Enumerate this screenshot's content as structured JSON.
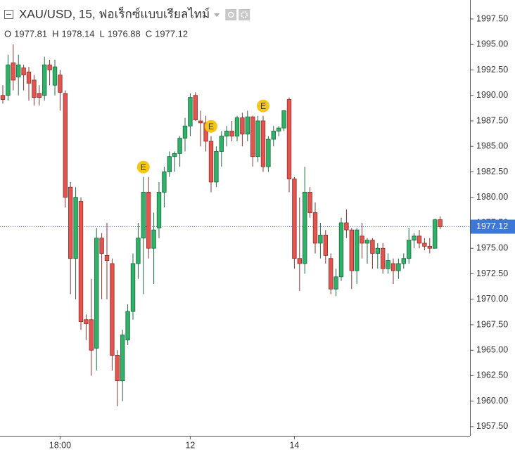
{
  "chart_data": {
    "type": "candlestick",
    "title": "XAU/USD, 15, ฟอเร็กซ์แบบเรียลไทม์",
    "ohlc_header": [
      {
        "label": "O",
        "value": 1977.81
      },
      {
        "label": "H",
        "value": 1978.14
      },
      {
        "label": "L",
        "value": 1976.88
      },
      {
        "label": "C",
        "value": 1977.12
      }
    ],
    "categories": [
      null,
      null,
      null,
      null,
      null,
      null,
      null,
      null,
      null,
      null,
      null,
      "18:00",
      null,
      null,
      null,
      null,
      null,
      null,
      null,
      null,
      null,
      null,
      null,
      null,
      null,
      null,
      null,
      null,
      null,
      null,
      null,
      null,
      null,
      null,
      null,
      null,
      "12",
      null,
      null,
      null,
      null,
      null,
      null,
      null,
      null,
      null,
      null,
      null,
      null,
      null,
      null,
      null,
      null,
      null,
      null,
      null,
      "14",
      null,
      null,
      null,
      null,
      null,
      null,
      null,
      null,
      null,
      null,
      null,
      null,
      null,
      null,
      null,
      null,
      null,
      null,
      null,
      null,
      null,
      null,
      null,
      null,
      null,
      null,
      null,
      null
    ],
    "open": [
      1990.0,
      1990.0,
      1993.2,
      1991.8,
      1992.7,
      1992.3,
      1991.5,
      1990.2,
      1990.0,
      1993.0,
      1991.0,
      1992.0,
      1990.2,
      1981.0,
      1974.0,
      1979.6,
      1968.0,
      1968.0,
      1965.2,
      1976.0,
      1974.3,
      1973.5,
      1964.5,
      1962.0,
      1966.0,
      1968.8,
      1973.5,
      1976.0,
      1980.5,
      1975.0,
      1977.0,
      1980.5,
      1982.5,
      1984.0,
      1984.3,
      1985.8,
      1987.0,
      1990.0,
      1987.5,
      1987.3,
      1985.5,
      1981.5,
      1984.5,
      1986.0,
      1986.5,
      1986.0,
      1987.8,
      1986.2,
      1987.9,
      1984.0,
      1987.5,
      1983.0,
      1985.7,
      1986.5,
      1986.8,
      1989.6,
      1981.8,
      1974.0,
      1973.5,
      1980.5,
      1978.5,
      1975.5,
      1976.3,
      1974.0,
      1971.0,
      1972.2,
      1977.5,
      1976.8,
      1972.8,
      1976.2,
      1975.5,
      1975.8,
      1974.5,
      1975.0,
      1973.0,
      1973.5,
      1972.8,
      1973.5,
      1974.0,
      1975.8,
      1976.2,
      1975.5,
      1975.2,
      1975.0,
      1977.81
    ],
    "high": [
      1991.0,
      1994.0,
      1995.0,
      1994.0,
      1993.0,
      1992.8,
      1992.0,
      1991.0,
      1993.8,
      1993.5,
      1993.5,
      1992.5,
      1990.5,
      1981.5,
      1981.0,
      1980.0,
      1968.5,
      1972.0,
      1977.0,
      1976.5,
      1977.5,
      1974.0,
      1965.0,
      1967.0,
      1969.5,
      1974.5,
      1977.5,
      1982.0,
      1982.0,
      1978.5,
      1981.5,
      1983.0,
      1984.5,
      1984.5,
      1986.0,
      1987.8,
      1990.2,
      1990.3,
      1988.5,
      1988.0,
      1986.0,
      1985.0,
      1986.5,
      1987.0,
      1987.5,
      1988.0,
      1988.3,
      1988.5,
      1988.0,
      1988.0,
      1988.0,
      1986.0,
      1987.0,
      1987.0,
      1988.5,
      1989.8,
      1982.0,
      1980.0,
      1983.0,
      1981.0,
      1979.5,
      1977.5,
      1976.8,
      1974.5,
      1973.0,
      1978.0,
      1978.8,
      1977.0,
      1977.0,
      1977.5,
      1976.0,
      1976.0,
      1975.5,
      1975.5,
      1974.5,
      1974.0,
      1974.0,
      1974.5,
      1977.0,
      1976.5,
      1976.8,
      1976.0,
      1976.0,
      1977.9,
      1978.14
    ],
    "low": [
      1989.2,
      1989.5,
      1990.5,
      1990.0,
      1990.5,
      1989.5,
      1989.0,
      1989.0,
      1989.5,
      1991.0,
      1990.0,
      1988.5,
      1979.0,
      1970.5,
      1970.0,
      1967.0,
      1966.0,
      1962.5,
      1963.0,
      1970.0,
      1970.0,
      1963.0,
      1959.5,
      1960.0,
      1965.5,
      1968.0,
      1972.0,
      1970.5,
      1974.0,
      1971.5,
      1976.0,
      1979.0,
      1982.0,
      1982.5,
      1983.0,
      1984.5,
      1986.0,
      1987.5,
      1985.0,
      1984.5,
      1980.5,
      1981.0,
      1983.0,
      1985.0,
      1985.5,
      1985.5,
      1985.0,
      1985.5,
      1983.0,
      1983.5,
      1982.5,
      1982.5,
      1985.0,
      1986.0,
      1986.5,
      1980.5,
      1973.0,
      1970.8,
      1972.5,
      1978.0,
      1974.5,
      1974.0,
      1973.5,
      1970.5,
      1970.3,
      1971.8,
      1976.0,
      1971.0,
      1971.5,
      1974.0,
      1973.5,
      1973.0,
      1973.0,
      1972.5,
      1972.5,
      1971.5,
      1972.0,
      1973.0,
      1973.5,
      1975.0,
      1975.0,
      1974.8,
      1974.5,
      1975.0,
      1976.88
    ],
    "close": [
      1989.6,
      1993.0,
      1991.5,
      1993.0,
      1992.0,
      1991.2,
      1989.8,
      1989.8,
      1993.0,
      1992.5,
      1992.8,
      1990.3,
      1980.0,
      1974.0,
      1980.0,
      1967.8,
      1967.6,
      1965.0,
      1976.0,
      1974.5,
      1973.8,
      1964.5,
      1962.0,
      1966.5,
      1968.8,
      1973.5,
      1976.0,
      1980.5,
      1975.0,
      1976.8,
      1980.5,
      1982.5,
      1984.0,
      1984.3,
      1985.8,
      1987.0,
      1989.8,
      1987.6,
      1987.3,
      1985.5,
      1981.5,
      1984.5,
      1986.0,
      1986.5,
      1986.0,
      1987.8,
      1986.2,
      1987.9,
      1984.0,
      1987.5,
      1983.0,
      1985.7,
      1986.5,
      1986.8,
      1988.5,
      1981.8,
      1974.0,
      1973.5,
      1980.5,
      1978.5,
      1975.5,
      1976.3,
      1974.3,
      1971.0,
      1972.2,
      1977.5,
      1976.8,
      1972.8,
      1976.8,
      1975.5,
      1975.8,
      1974.5,
      1975.0,
      1973.0,
      1973.8,
      1972.8,
      1973.5,
      1974.0,
      1975.8,
      1976.2,
      1975.5,
      1975.2,
      1975.0,
      1977.8,
      1977.12
    ],
    "up_color": "#2fb168",
    "down_color": "#e5534e",
    "last_price": 1977.12,
    "events": [
      {
        "label": "E",
        "index": 27
      },
      {
        "label": "E",
        "index": 40
      },
      {
        "label": "E",
        "index": 50
      }
    ],
    "ylim": [
      1956.6,
      1999.36
    ],
    "yticks": [
      {
        "value": 1957.5,
        "label": "1957.50"
      },
      {
        "value": 1960,
        "label": "1960.00"
      },
      {
        "value": 1962.5,
        "label": "1962.50"
      },
      {
        "value": 1965,
        "label": "1965.00"
      },
      {
        "value": 1967.5,
        "label": "1967.50"
      },
      {
        "value": 1970,
        "label": "1970.00"
      },
      {
        "value": 1972.5,
        "label": "1972.50"
      },
      {
        "value": 1975,
        "label": "1975.00"
      },
      {
        "value": 1977.5,
        "label": "1977.50"
      },
      {
        "value": 1980,
        "label": "1980.00"
      },
      {
        "value": 1982.5,
        "label": "1982.50"
      },
      {
        "value": 1985,
        "label": "1985.00"
      },
      {
        "value": 1987.5,
        "label": "1987.50"
      },
      {
        "value": 1990,
        "label": "1990.00"
      },
      {
        "value": 1992.5,
        "label": "1992.50"
      },
      {
        "value": 1995,
        "label": "1995.00"
      },
      {
        "value": 1997.5,
        "label": "1997.50"
      }
    ]
  }
}
